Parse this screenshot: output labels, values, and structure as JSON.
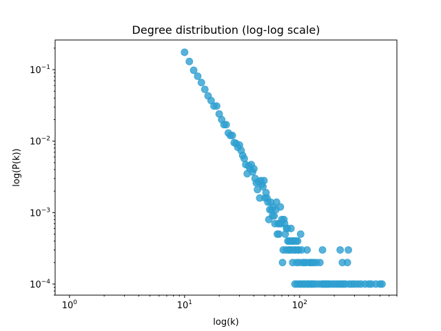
{
  "chart_data": {
    "type": "scatter",
    "title": "Degree distribution (log-log scale)",
    "xlabel": "log(k)",
    "ylabel": "log(P(k))",
    "xscale": "log",
    "yscale": "log",
    "xlim": [
      0.75,
      700
    ],
    "ylim": [
      7e-05,
      0.26
    ],
    "x_ticks": [
      {
        "value": 1,
        "base": "10",
        "exp": "0"
      },
      {
        "value": 10,
        "base": "10",
        "exp": "1"
      },
      {
        "value": 100,
        "base": "10",
        "exp": "2"
      }
    ],
    "y_ticks": [
      {
        "value": 0.0001,
        "base": "10",
        "exp": "−4"
      },
      {
        "value": 0.001,
        "base": "10",
        "exp": "−3"
      },
      {
        "value": 0.01,
        "base": "10",
        "exp": "−2"
      },
      {
        "value": 0.1,
        "base": "10",
        "exp": "−1"
      }
    ],
    "grid": false,
    "legend": "none",
    "marker_color": "#2e9fd0",
    "points": [
      [
        10,
        0.175
      ],
      [
        11,
        0.13
      ],
      [
        12,
        0.098
      ],
      [
        13,
        0.081
      ],
      [
        14,
        0.066
      ],
      [
        15,
        0.053
      ],
      [
        16,
        0.043
      ],
      [
        17,
        0.037
      ],
      [
        18,
        0.031
      ],
      [
        19,
        0.031
      ],
      [
        20,
        0.024
      ],
      [
        21,
        0.02
      ],
      [
        22,
        0.017
      ],
      [
        23,
        0.017
      ],
      [
        24,
        0.013
      ],
      [
        25,
        0.012
      ],
      [
        26,
        0.012
      ],
      [
        27,
        0.0095
      ],
      [
        28,
        0.0093
      ],
      [
        29,
        0.0082
      ],
      [
        30,
        0.0088
      ],
      [
        31,
        0.0074
      ],
      [
        32,
        0.0063
      ],
      [
        33,
        0.0057
      ],
      [
        34,
        0.0047
      ],
      [
        35,
        0.0035
      ],
      [
        36,
        0.0045
      ],
      [
        37,
        0.0041
      ],
      [
        38,
        0.0047
      ],
      [
        39,
        0.0037
      ],
      [
        40,
        0.0041
      ],
      [
        41,
        0.003
      ],
      [
        42,
        0.0026
      ],
      [
        43,
        0.0021
      ],
      [
        44,
        0.0027
      ],
      [
        45,
        0.0016
      ],
      [
        46,
        0.0028
      ],
      [
        47,
        0.0025
      ],
      [
        48,
        0.0023
      ],
      [
        49,
        0.0028
      ],
      [
        50,
        0.0016
      ],
      [
        51,
        0.0019
      ],
      [
        52,
        0.0016
      ],
      [
        53,
        0.0014
      ],
      [
        54,
        0.0008
      ],
      [
        55,
        0.0011
      ],
      [
        56,
        0.0014
      ],
      [
        57,
        0.0011
      ],
      [
        58,
        0.0009
      ],
      [
        59,
        0.0012
      ],
      [
        60,
        0.0009
      ],
      [
        61,
        0.0007
      ],
      [
        62,
        0.0011
      ],
      [
        63,
        0.0014
      ],
      [
        64,
        0.0005
      ],
      [
        65,
        0.0007
      ],
      [
        66,
        0.0005
      ],
      [
        67,
        0.0007
      ],
      [
        68,
        0.0012
      ],
      [
        69,
        0.0007
      ],
      [
        70,
        0.0008
      ],
      [
        71,
        0.0002
      ],
      [
        72,
        0.0003
      ],
      [
        73,
        0.0008
      ],
      [
        74,
        0.0007
      ],
      [
        75,
        0.0005
      ],
      [
        76,
        0.0003
      ],
      [
        77,
        0.0006
      ],
      [
        78,
        0.0006
      ],
      [
        79,
        0.0004
      ],
      [
        80,
        0.0003
      ],
      [
        81,
        0.0004
      ],
      [
        82,
        0.0003
      ],
      [
        83,
        0.0004
      ],
      [
        84,
        0.0006
      ],
      [
        85,
        0.0003
      ],
      [
        86,
        0.0004
      ],
      [
        87,
        0.0002
      ],
      [
        88,
        0.0004
      ],
      [
        89,
        0.0004
      ],
      [
        90,
        0.0003
      ],
      [
        91,
        0.0001
      ],
      [
        92,
        0.0003
      ],
      [
        93,
        0.0004
      ],
      [
        94,
        0.0002
      ],
      [
        95,
        0.0001
      ],
      [
        96,
        0.0004
      ],
      [
        97,
        0.0003
      ],
      [
        98,
        0.0003
      ],
      [
        99,
        0.0002
      ],
      [
        100,
        0.0001
      ],
      [
        102,
        0.0005
      ],
      [
        103,
        0.0001
      ],
      [
        104,
        0.0003
      ],
      [
        106,
        0.0002
      ],
      [
        108,
        0.0001
      ],
      [
        110,
        0.0002
      ],
      [
        112,
        0.0001
      ],
      [
        114,
        0.0002
      ],
      [
        116,
        0.0003
      ],
      [
        118,
        0.0001
      ],
      [
        120,
        0.0001
      ],
      [
        122,
        0.0002
      ],
      [
        124,
        0.0002
      ],
      [
        126,
        0.0001
      ],
      [
        128,
        0.0002
      ],
      [
        130,
        0.0001
      ],
      [
        133,
        0.0002
      ],
      [
        136,
        0.0001
      ],
      [
        140,
        0.0002
      ],
      [
        145,
        0.0001
      ],
      [
        150,
        0.0002
      ],
      [
        155,
        0.0001
      ],
      [
        158,
        0.0003
      ],
      [
        160,
        0.0001
      ],
      [
        165,
        0.0001
      ],
      [
        170,
        0.0001
      ],
      [
        175,
        0.0001
      ],
      [
        180,
        0.0001
      ],
      [
        190,
        0.0001
      ],
      [
        200,
        0.0001
      ],
      [
        210,
        0.0001
      ],
      [
        220,
        0.0001
      ],
      [
        225,
        0.0003
      ],
      [
        230,
        0.0001
      ],
      [
        235,
        0.0002
      ],
      [
        240,
        0.0001
      ],
      [
        250,
        0.0001
      ],
      [
        260,
        0.0002
      ],
      [
        265,
        0.0003
      ],
      [
        270,
        0.0001
      ],
      [
        285,
        0.0001
      ],
      [
        300,
        0.0001
      ],
      [
        320,
        0.0001
      ],
      [
        340,
        0.0001
      ],
      [
        370,
        0.0001
      ],
      [
        400,
        0.0001
      ],
      [
        420,
        0.0001
      ],
      [
        460,
        0.0001
      ],
      [
        500,
        0.0001
      ],
      [
        520,
        0.0001
      ]
    ]
  }
}
